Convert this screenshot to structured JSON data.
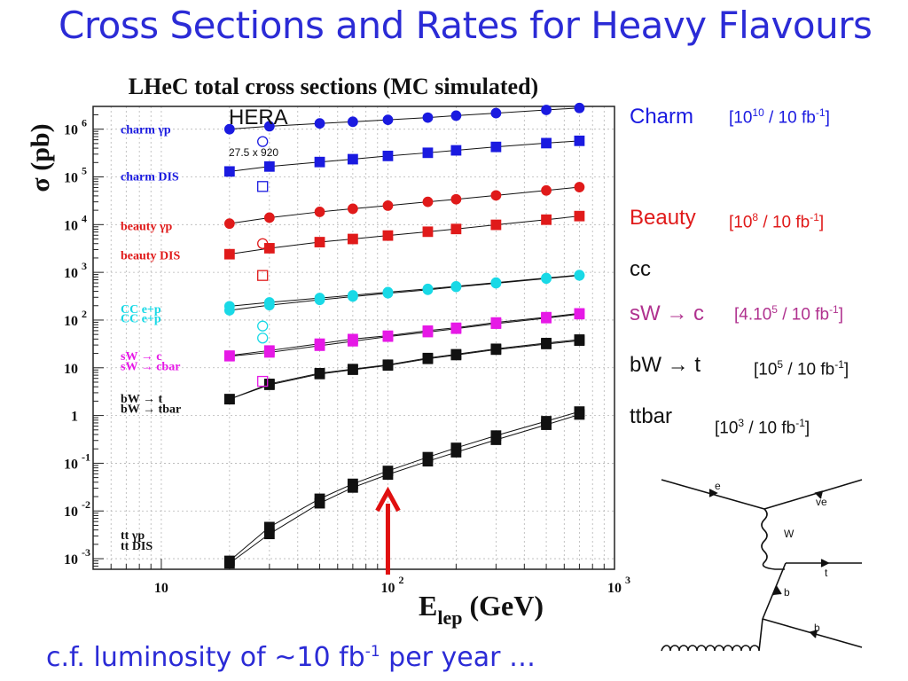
{
  "slide": {
    "title": "Cross Sections and Rates for Heavy Flavours",
    "footer_prefix": "c.f. luminosity of ~10 fb",
    "footer_exp": "-1",
    "footer_suffix": " per year …"
  },
  "colors": {
    "title": "#2b2bd6",
    "blue": "#1a1ae0",
    "red": "#e01a1a",
    "cyan": "#19d9e6",
    "magenta": "#e619e6",
    "black": "#111111",
    "purple": "#b0328f",
    "arrow": "#e01010"
  },
  "rates": [
    {
      "process": "Charm",
      "process_color": "#1a1ae0",
      "rate_color": "#1a1ae0",
      "rate_open": "[10",
      "rate_exp": "10",
      "rate_mid": " / 10 fb",
      "rate_exp2": "-1",
      "rate_close": "]"
    },
    {
      "process": "Beauty",
      "process_color": "#e01a1a",
      "rate_color": "#e01a1a",
      "rate_open": "[10",
      "rate_exp": "8",
      "rate_mid": " / 10 fb",
      "rate_exp2": "-1",
      "rate_close": "]"
    },
    {
      "process": "cc",
      "process_color": "#111111",
      "rate_color": "#111111",
      "rate_open": "",
      "rate_exp": "",
      "rate_mid": "",
      "rate_exp2": "",
      "rate_close": ""
    },
    {
      "process": "sW → c",
      "process_color": "#b0328f",
      "rate_color": "#b0328f",
      "rate_open": "[4.10",
      "rate_exp": "5",
      "rate_mid": " / 10 fb",
      "rate_exp2": "-1",
      "rate_close": "]"
    },
    {
      "process": "bW → t",
      "process_color": "#111111",
      "rate_color": "#111111",
      "rate_open": "[10",
      "rate_exp": "5",
      "rate_mid": " / 10 fb",
      "rate_exp2": "-1",
      "rate_close": "]"
    },
    {
      "process": "ttbar",
      "process_color": "#111111",
      "rate_color": "#111111",
      "rate_open": "[10",
      "rate_exp": "3",
      "rate_mid": " / 10 fb",
      "rate_exp2": "-1",
      "rate_close": "]"
    }
  ],
  "chart_data": {
    "type": "scatter",
    "title": "LHeC total cross sections (MC simulated)",
    "xlabel": "E",
    "xlabel_sub": "lep",
    "xlabel_unit": "(GeV)",
    "ylabel": "σ (pb)",
    "x_scale": "log",
    "y_scale": "log",
    "xlim": [
      5,
      1000
    ],
    "ylim": [
      0.0006,
      3000000
    ],
    "grid": true,
    "x_ticks": [
      {
        "v": 10,
        "base": "10",
        "exp": ""
      },
      {
        "v": 100,
        "base": "10",
        "exp": "2"
      },
      {
        "v": 1000,
        "base": "10",
        "exp": "3"
      }
    ],
    "y_ticks": [
      {
        "v": 0.001,
        "base": "10",
        "exp": "-3"
      },
      {
        "v": 0.01,
        "base": "10",
        "exp": "-2"
      },
      {
        "v": 0.1,
        "base": "10",
        "exp": "-1"
      },
      {
        "v": 1,
        "base": "1",
        "exp": ""
      },
      {
        "v": 10,
        "base": "10",
        "exp": ""
      },
      {
        "v": 100,
        "base": "10",
        "exp": "2"
      },
      {
        "v": 1000,
        "base": "10",
        "exp": "3"
      },
      {
        "v": 10000,
        "base": "10",
        "exp": "4"
      },
      {
        "v": 100000,
        "base": "10",
        "exp": "5"
      },
      {
        "v": 1000000,
        "base": "10",
        "exp": "6"
      }
    ],
    "x": [
      20,
      30,
      50,
      70,
      100,
      150,
      200,
      300,
      500,
      700
    ],
    "series": [
      {
        "name": "charm γp",
        "color": "#1a1ae0",
        "marker": "circle",
        "values": [
          1000000,
          1150000,
          1320000,
          1430000,
          1570000,
          1750000,
          1920000,
          2170000,
          2530000,
          2780000
        ]
      },
      {
        "name": "charm DIS",
        "color": "#1a1ae0",
        "marker": "square",
        "values": [
          130000,
          165000,
          205000,
          235000,
          275000,
          320000,
          360000,
          425000,
          510000,
          570000
        ]
      },
      {
        "name": "beauty γp",
        "color": "#e01a1a",
        "marker": "circle",
        "values": [
          10500,
          14000,
          18500,
          21500,
          25000,
          30000,
          34000,
          41000,
          52000,
          61000
        ]
      },
      {
        "name": "beauty DIS",
        "color": "#e01a1a",
        "marker": "square",
        "values": [
          2400,
          3200,
          4300,
          5000,
          5900,
          7100,
          8100,
          9900,
          12700,
          15100
        ]
      },
      {
        "name": "CC e+p",
        "color": "#19d9e6",
        "marker": "circle",
        "values": [
          195,
          235,
          290,
          330,
          385,
          450,
          510,
          610,
          760,
          880
        ]
      },
      {
        "name": "CC e+p",
        "color": "#19d9e6",
        "marker": "circle",
        "values": [
          160,
          205,
          265,
          310,
          365,
          430,
          495,
          590,
          740,
          860
        ]
      },
      {
        "name": "sW → c",
        "color": "#e619e6",
        "marker": "square",
        "values": [
          18,
          23,
          32,
          40,
          47,
          60,
          69,
          89,
          115,
          138
        ]
      },
      {
        "name": "sW → cbar",
        "color": "#e619e6",
        "marker": "square",
        "values": [
          17.5,
          21,
          29,
          36,
          45,
          56,
          66,
          84,
          110,
          133
        ]
      },
      {
        "name": "bW → t",
        "color": "#111111",
        "marker": "square",
        "values": [
          2.2,
          4.6,
          7.7,
          9.4,
          11.6,
          16,
          19.2,
          25,
          33,
          39
        ]
      },
      {
        "name": "bW → tbar",
        "color": "#111111",
        "marker": "square",
        "values": [
          2.2,
          4.4,
          7.4,
          9.1,
          11.2,
          15.4,
          18.5,
          24,
          31.5,
          37
        ]
      },
      {
        "name": "tt γp",
        "color": "#111111",
        "marker": "square",
        "values": [
          0.0009,
          0.0046,
          0.018,
          0.037,
          0.069,
          0.134,
          0.21,
          0.38,
          0.76,
          1.21
        ]
      },
      {
        "name": "tt DIS",
        "color": "#111111",
        "marker": "square",
        "values": [
          0.0008,
          0.0033,
          0.0145,
          0.031,
          0.058,
          0.11,
          0.17,
          0.31,
          0.64,
          1.05
        ]
      }
    ],
    "legend": [
      {
        "text": "charm γp",
        "color": "#1a1ae0",
        "y": 1000000
      },
      {
        "text": "charm DIS",
        "color": "#1a1ae0",
        "y": 105000
      },
      {
        "text": "beauty γp",
        "color": "#e01a1a",
        "y": 9500
      },
      {
        "text": "beauty DIS",
        "color": "#e01a1a",
        "y": 2300
      },
      {
        "text": "CC e+p",
        "color": "#19d9e6",
        "y": 175
      },
      {
        "text": "CC e+p",
        "color": "#19d9e6",
        "y": 110
      },
      {
        "text": "sW → c",
        "color": "#e619e6",
        "y": 18
      },
      {
        "text": "sW → cbar",
        "color": "#e619e6",
        "y": 11
      },
      {
        "text": "bW → t",
        "color": "#111111",
        "y": 2.3
      },
      {
        "text": "bW → tbar",
        "color": "#111111",
        "y": 1.4
      },
      {
        "text": "tt  γp",
        "color": "#111111",
        "y": 0.0032
      },
      {
        "text": "tt  DIS",
        "color": "#111111",
        "y": 0.0019
      }
    ],
    "hera": {
      "label": "HERA",
      "sub_label": "27.5 x 920",
      "x": 28,
      "points": [
        {
          "color": "#1a1ae0",
          "marker": "circle",
          "value": 550000
        },
        {
          "color": "#1a1ae0",
          "marker": "square",
          "value": 63000
        },
        {
          "color": "#e01a1a",
          "marker": "circle",
          "value": 4000
        },
        {
          "color": "#e01a1a",
          "marker": "square",
          "value": 860
        },
        {
          "color": "#19d9e6",
          "marker": "circle",
          "value": 75
        },
        {
          "color": "#19d9e6",
          "marker": "circle",
          "value": 42
        },
        {
          "color": "#e619e6",
          "marker": "square",
          "value": 5.2
        }
      ]
    },
    "arrow": {
      "x": 100
    }
  },
  "feynman": {
    "labels": {
      "e": "e",
      "ve": "ve",
      "W": "W",
      "t": "t",
      "b1": "b",
      "b2": "b"
    }
  }
}
